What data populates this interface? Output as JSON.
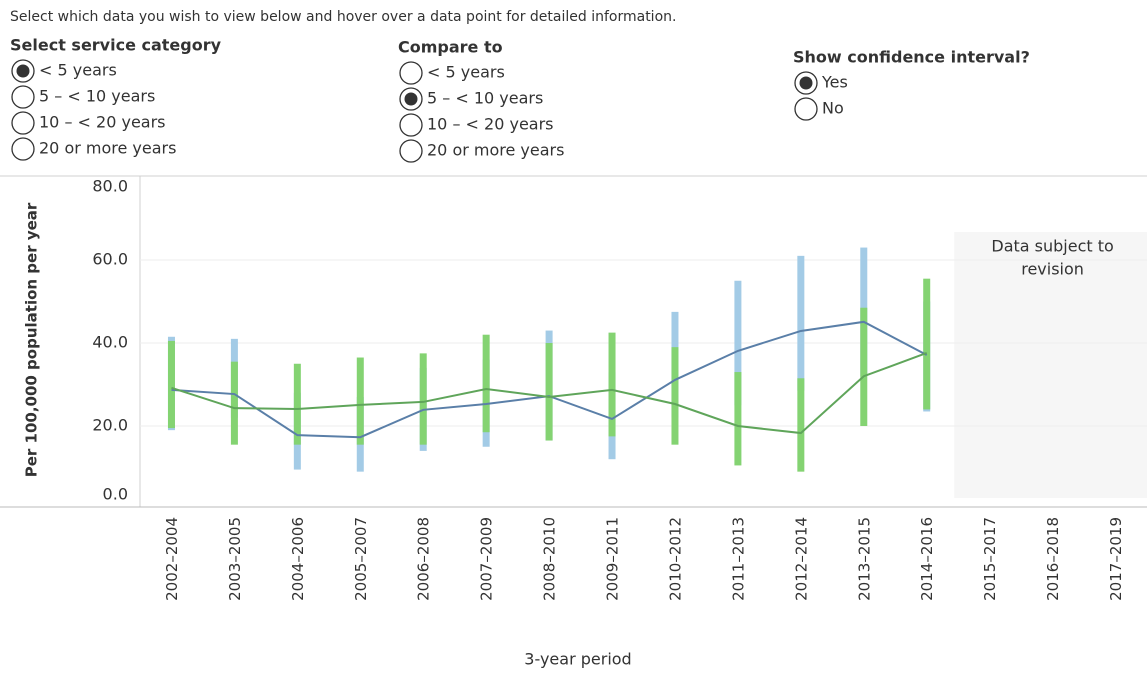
{
  "instruction": "Select which data you wish to view below and hover over a data point for detailed information.",
  "controls": [
    {
      "label": "Select service category",
      "options": [
        "< 5 years",
        "5 – < 10 years",
        "10 – < 20 years",
        "20 or more years"
      ],
      "selected": 0
    },
    {
      "label": "Compare to",
      "options": [
        "< 5 years",
        "5 – < 10 years",
        "10 – < 20 years",
        "20 or more years"
      ],
      "selected": 1
    },
    {
      "label": "Show confidence interval?",
      "options": [
        "Yes",
        "No"
      ],
      "selected": 0
    }
  ],
  "chart_data": {
    "type": "line",
    "x_label": "3-year period",
    "y_label": "Per 100,000 population per year",
    "annotation": [
      "Data subject to",
      "revision"
    ],
    "categories": [
      "2002–2004",
      "2003–2005",
      "2004–2006",
      "2005–2007",
      "2006–2008",
      "2007–2009",
      "2008–2010",
      "2009–2011",
      "2010–2012",
      "2011–2013",
      "2012–2014",
      "2013–2015",
      "2014–2016",
      "2015–2017",
      "2016–2018",
      "2017–2019"
    ],
    "ylim": [
      0,
      80
    ],
    "yticks": [
      {
        "value": 0,
        "label": "0.0"
      },
      {
        "value": 20,
        "label": "20.0"
      },
      {
        "value": 40,
        "label": "40.0"
      },
      {
        "value": 60,
        "label": "60.0"
      },
      {
        "value": 80,
        "label": "80.0"
      }
    ],
    "grid": true,
    "series": [
      {
        "color": "#5a7fa8",
        "ci_color": "#a3cbe6",
        "values": [
          28.7,
          27.7,
          17.8,
          17.3,
          23.9,
          25.3,
          27.2,
          21.7,
          31.1,
          38.1,
          42.9,
          45.1,
          37.1,
          null,
          null,
          null
        ],
        "lower": [
          19.0,
          22,
          9.5,
          9,
          14,
          15,
          16.5,
          12,
          22,
          25,
          28.5,
          32,
          23.5,
          null,
          null,
          null
        ],
        "upper": [
          41.5,
          41,
          28,
          27,
          34,
          36,
          43,
          33,
          47.5,
          55,
          61,
          63,
          50,
          null,
          null,
          null
        ]
      },
      {
        "color": "#5fa55a",
        "ci_color": "#84d372",
        "values": [
          29.2,
          24.3,
          24.1,
          25.1,
          25.8,
          28.9,
          27.0,
          28.7,
          25.3,
          20.0,
          18.3,
          32.0,
          37.6,
          null,
          null,
          null
        ],
        "lower": [
          19.5,
          15.5,
          15.5,
          15.5,
          15.5,
          18.5,
          16.5,
          17.5,
          15.5,
          10.5,
          9,
          20,
          24,
          null,
          null,
          null
        ],
        "upper": [
          40.5,
          35.5,
          35,
          36.5,
          37.5,
          42,
          40,
          42.5,
          39,
          33,
          31.5,
          48.5,
          55.5,
          null,
          null,
          null
        ]
      }
    ]
  }
}
